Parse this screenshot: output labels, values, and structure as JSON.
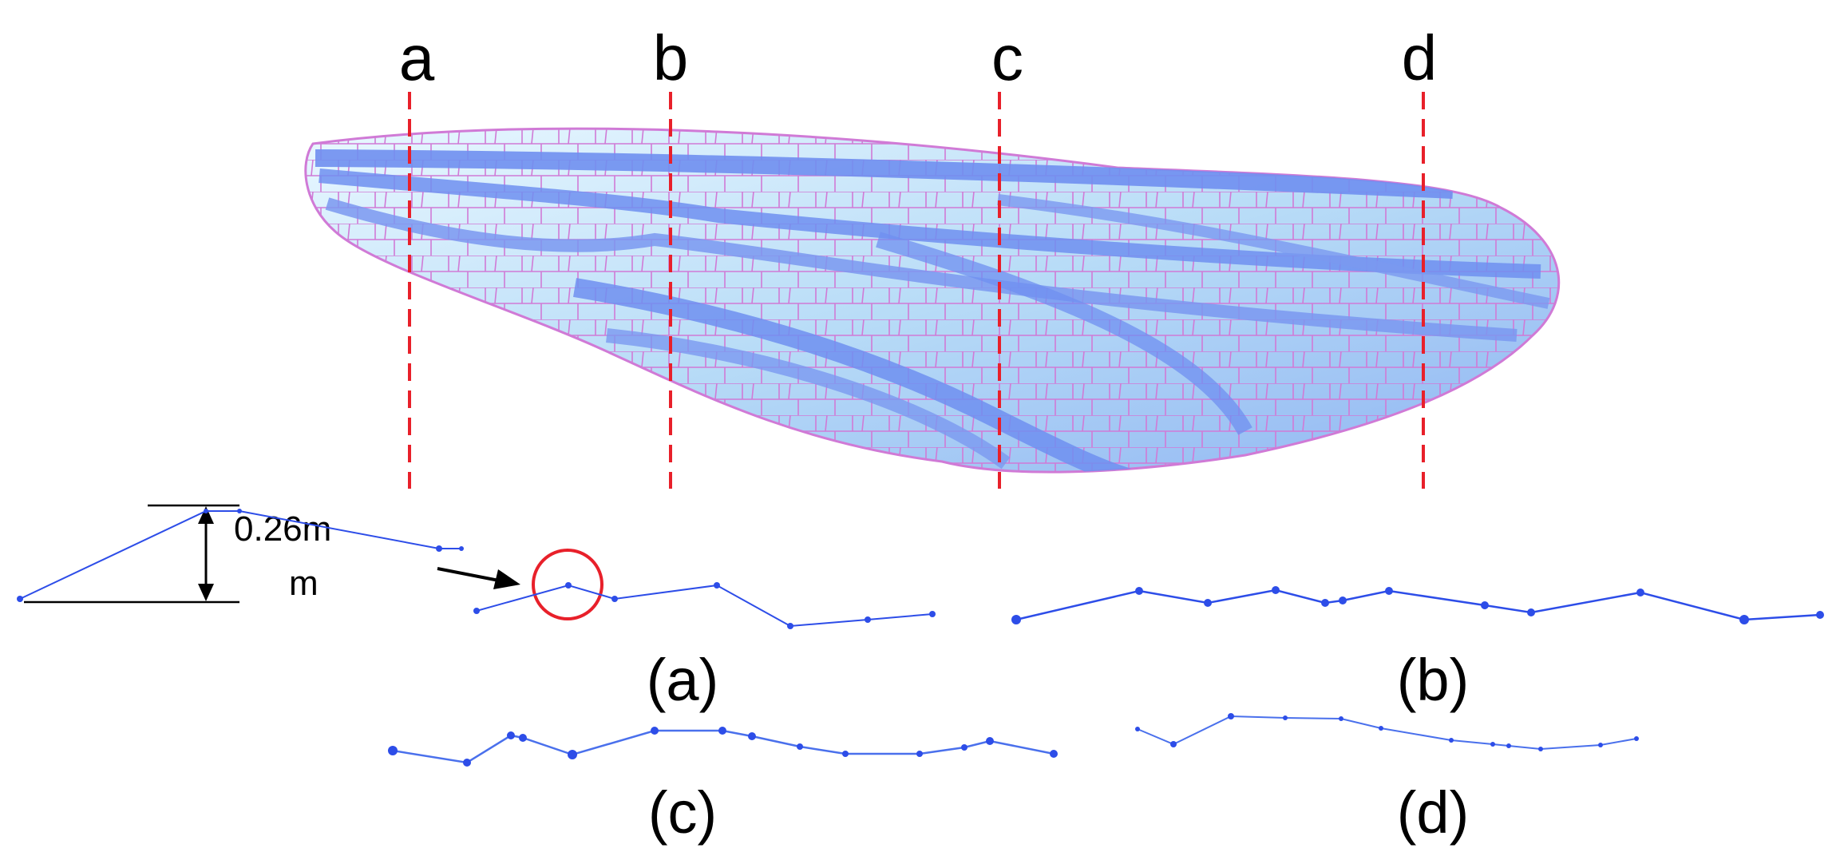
{
  "section_letters": [
    "a",
    "b",
    "c",
    "d"
  ],
  "dimension": {
    "line1": "0.26m",
    "line2": "m"
  },
  "panel_labels": [
    "(a)",
    "(b)",
    "(c)",
    "(d)"
  ],
  "colors": {
    "cut_line": "#e8202a",
    "wing_fill": "#bfe4f7",
    "wing_vein": "#6f8ff0",
    "wing_outline": "#d07ad6",
    "profile": "#2d4de8",
    "callout_circle": "#e8202a"
  }
}
